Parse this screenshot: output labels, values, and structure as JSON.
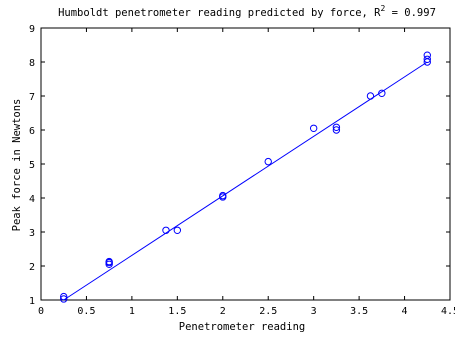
{
  "chart_data": {
    "type": "scatter",
    "title": "Humboldt penetrometer reading predicted by force, R",
    "title_superscript": "2",
    "title_suffix": " = 0.997",
    "xlabel": "Penetrometer reading",
    "ylabel": "Peak force in Newtons",
    "xlim": [
      0,
      4.5
    ],
    "ylim": [
      1,
      9
    ],
    "xticks": [
      0,
      0.5,
      1,
      1.5,
      2,
      2.5,
      3,
      3.5,
      4,
      4.5
    ],
    "xtick_labels": [
      "0",
      "0.5",
      "1",
      "1.5",
      "2",
      "2.5",
      "3",
      "3.5",
      "4",
      "4.5"
    ],
    "yticks": [
      1,
      2,
      3,
      4,
      5,
      6,
      7,
      8,
      9
    ],
    "ytick_labels": [
      "1",
      "2",
      "3",
      "4",
      "5",
      "6",
      "7",
      "8",
      "9"
    ],
    "grid": false,
    "series": [
      {
        "marker": "circle-open",
        "color": "#0000ff",
        "points": [
          {
            "x": 0.25,
            "y": 1.03
          },
          {
            "x": 0.25,
            "y": 1.1
          },
          {
            "x": 0.75,
            "y": 2.05
          },
          {
            "x": 0.75,
            "y": 2.1
          },
          {
            "x": 0.75,
            "y": 2.13
          },
          {
            "x": 1.375,
            "y": 3.05
          },
          {
            "x": 1.5,
            "y": 3.05
          },
          {
            "x": 2.0,
            "y": 4.03
          },
          {
            "x": 2.0,
            "y": 4.07
          },
          {
            "x": 2.5,
            "y": 5.07
          },
          {
            "x": 3.0,
            "y": 6.05
          },
          {
            "x": 3.25,
            "y": 6.0
          },
          {
            "x": 3.25,
            "y": 6.08
          },
          {
            "x": 3.625,
            "y": 7.0
          },
          {
            "x": 3.75,
            "y": 7.08
          },
          {
            "x": 4.25,
            "y": 8.0
          },
          {
            "x": 4.25,
            "y": 8.08
          },
          {
            "x": 4.25,
            "y": 8.2
          }
        ]
      },
      {
        "type": "line",
        "color": "#0000ff",
        "points": [
          {
            "x": 0.25,
            "y": 1.0
          },
          {
            "x": 4.25,
            "y": 8.0
          }
        ]
      }
    ]
  }
}
